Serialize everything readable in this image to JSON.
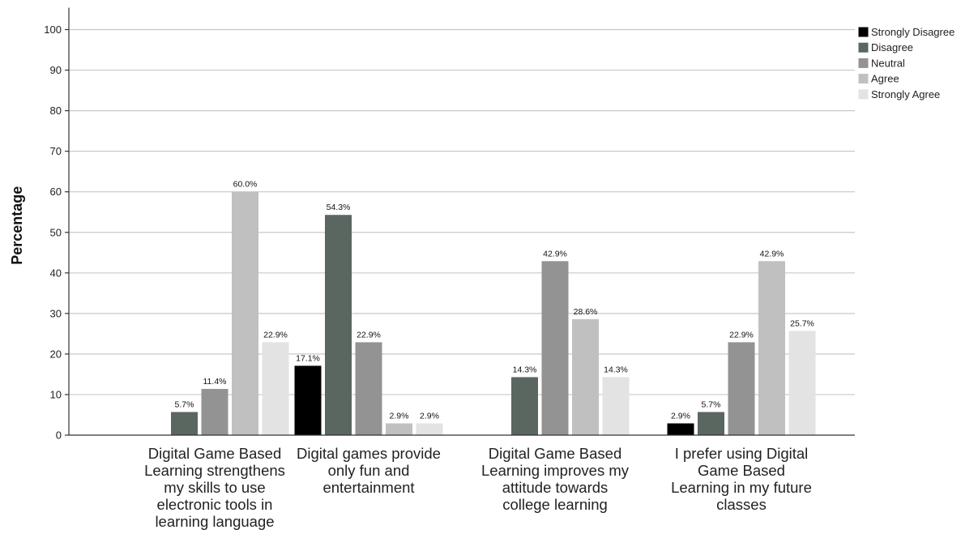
{
  "chart_data": {
    "type": "bar",
    "ylabel": "Percentage",
    "xlabel": "",
    "ylim": [
      0,
      105
    ],
    "yticks": [
      0,
      10,
      20,
      30,
      40,
      50,
      60,
      70,
      80,
      90,
      100
    ],
    "grid": true,
    "legend_position": "top-right",
    "categories": [
      "Digital Game Based Learning strengthens my skills to use electronic tools in learning language",
      "Digital games provide only fun and entertainment",
      "Digital Game Based Learning improves my attitude towards college learning",
      "I prefer using Digital Game Based Learning in my future classes"
    ],
    "category_lines": [
      [
        "Digital Game Based",
        "Learning strengthens",
        "my skills to use",
        "electronic tools in",
        "learning language"
      ],
      [
        "Digital games provide",
        "only fun and",
        "entertainment"
      ],
      [
        "Digital Game Based",
        "Learning improves my",
        "attitude towards",
        "college learning"
      ],
      [
        "I prefer using Digital",
        "Game Based",
        "Learning in my future",
        "classes"
      ]
    ],
    "series": [
      {
        "name": "Strongly Disagree",
        "color": "#000000",
        "values": [
          null,
          17.1,
          null,
          2.9
        ],
        "labels": [
          null,
          "17.1%",
          null,
          "2.9%"
        ]
      },
      {
        "name": "Disagree",
        "color": "#5a6660",
        "values": [
          5.7,
          54.3,
          14.3,
          5.7
        ],
        "labels": [
          "5.7%",
          "54.3%",
          "14.3%",
          "5.7%"
        ]
      },
      {
        "name": "Neutral",
        "color": "#939393",
        "values": [
          11.4,
          22.9,
          42.9,
          22.9
        ],
        "labels": [
          "11.4%",
          "22.9%",
          "42.9%",
          "22.9%"
        ]
      },
      {
        "name": "Agree",
        "color": "#c0c0c0",
        "values": [
          60.0,
          2.9,
          28.6,
          42.9
        ],
        "labels": [
          "60.0%",
          "2.9%",
          "28.6%",
          "42.9%"
        ]
      },
      {
        "name": "Strongly Agree",
        "color": "#e3e3e3",
        "values": [
          22.9,
          2.9,
          14.3,
          25.7
        ],
        "labels": [
          "22.9%",
          "2.9%",
          "14.3%",
          "25.7%"
        ]
      }
    ]
  }
}
